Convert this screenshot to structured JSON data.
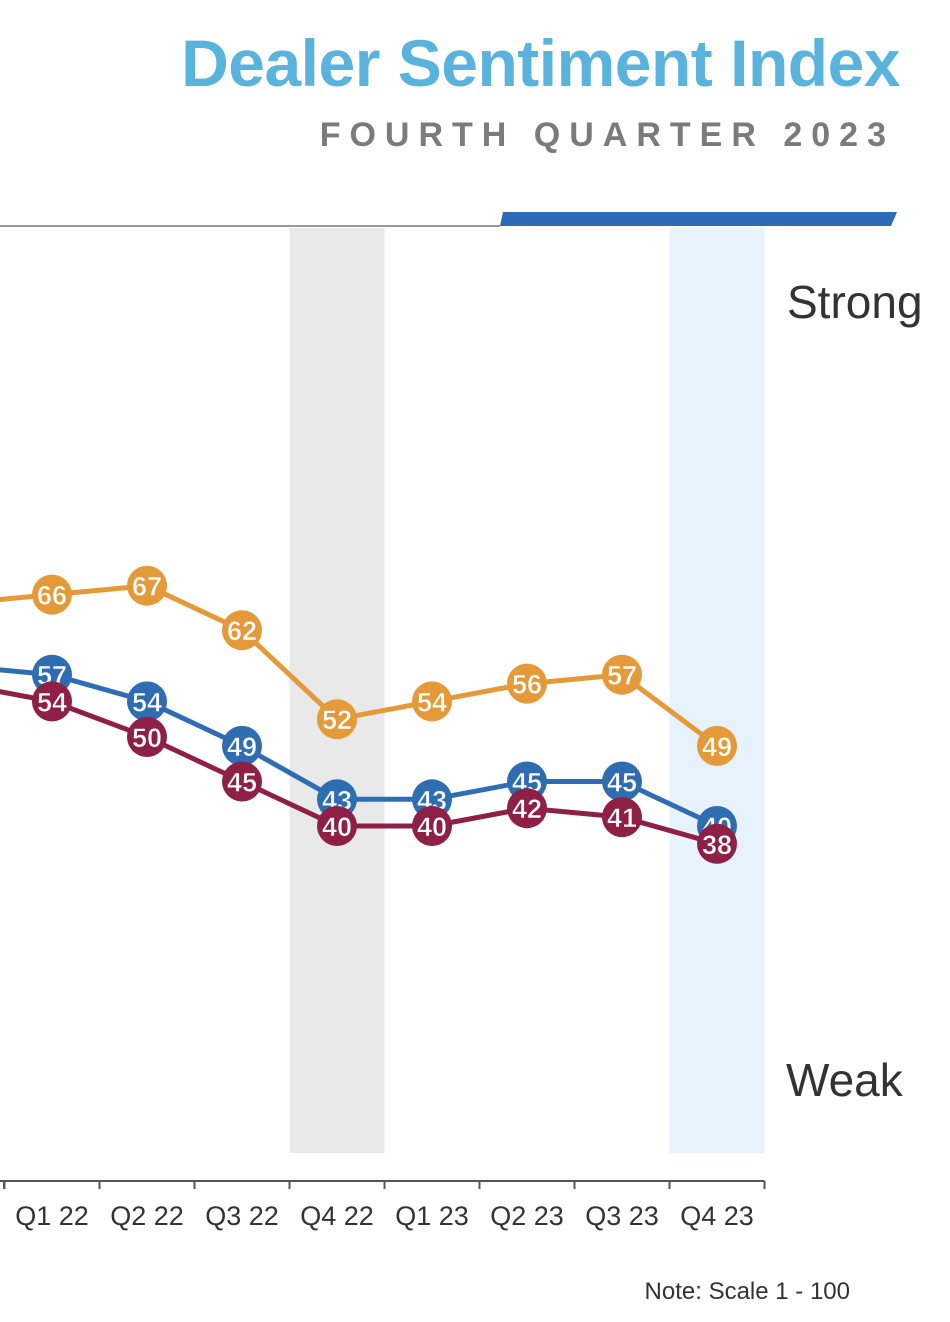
{
  "header": {
    "title": "Dealer Sentiment Index",
    "subtitle": "FOURTH QUARTER 2023"
  },
  "note": "Note: Scale 1 - 100",
  "colors": {
    "title": "#5ab3dc",
    "accent_bar": "#2e6ab5",
    "divider": "#9a9a9a",
    "shade_gray": "#e9e9e9",
    "shade_blue": "#e8f2fc",
    "tick_text": "#333333"
  },
  "chart_data": {
    "type": "line",
    "categories": [
      "Q1 22",
      "Q2 22",
      "Q3 22",
      "Q4 22",
      "Q1 23",
      "Q2 23",
      "Q3 23",
      "Q4 23"
    ],
    "ylim": [
      1,
      100
    ],
    "y_range_labels": {
      "top": "Strong",
      "bottom": "Weak"
    },
    "highlighted_quarters": [
      {
        "category": "Q4 22",
        "color": "#e9e9e9"
      },
      {
        "category": "Q4 23",
        "color": "#e8f2fc"
      }
    ],
    "grid": false,
    "series": [
      {
        "color": "#e59a3a",
        "leading_value": 65,
        "values": [
          66,
          67,
          62,
          52,
          54,
          56,
          57,
          49
        ]
      },
      {
        "color": "#2f6db3",
        "leading_value": 58,
        "values": [
          57,
          54,
          49,
          43,
          43,
          45,
          45,
          40
        ]
      },
      {
        "color": "#8e1f45",
        "leading_value": 56,
        "values": [
          54,
          50,
          45,
          40,
          40,
          42,
          41,
          38
        ]
      }
    ]
  }
}
